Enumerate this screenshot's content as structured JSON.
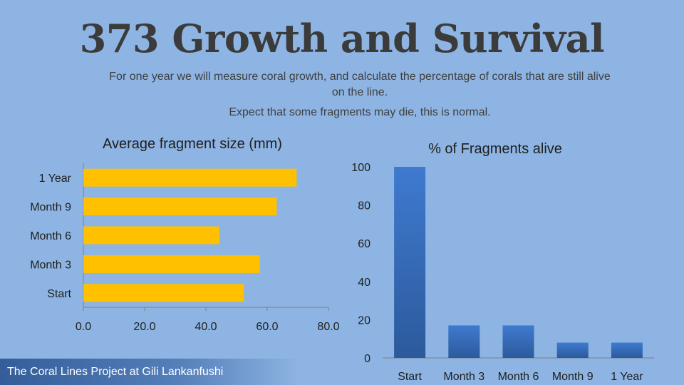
{
  "header": {
    "title": "373 Growth and Survival",
    "subtitle_line1": "For one year we will measure coral growth, and calculate the percentage of corals that are still alive on the line.",
    "subtitle_line2": "Expect that some fragments may die, this is normal."
  },
  "footer": {
    "text": "The Coral Lines Project at Gili Lankanfushi"
  },
  "colors": {
    "background": "#8db4e2",
    "bar_left": "#ffc000",
    "bar_right": "#3a6fc0"
  },
  "chart_data": [
    {
      "type": "bar",
      "orientation": "horizontal",
      "title": "Average fragment size (mm)",
      "categories": [
        "Start",
        "Month 3",
        "Month 6",
        "Month 9",
        "1 Year"
      ],
      "values": [
        52.4,
        57.6,
        44.4,
        63.1,
        69.6
      ],
      "xlim": [
        0,
        80
      ],
      "xticks": [
        "0.0",
        "20.0",
        "40.0",
        "60.0",
        "80.0"
      ],
      "grid": false
    },
    {
      "type": "bar",
      "orientation": "vertical",
      "title": "% of Fragments alive",
      "categories": [
        "Start",
        "Month 3",
        "Month 6",
        "Month 9",
        "1 Year"
      ],
      "values": [
        100,
        17,
        17,
        8,
        8
      ],
      "ylim": [
        0,
        100
      ],
      "yticks": [
        "0",
        "20",
        "40",
        "60",
        "80",
        "100"
      ],
      "grid": false
    }
  ]
}
